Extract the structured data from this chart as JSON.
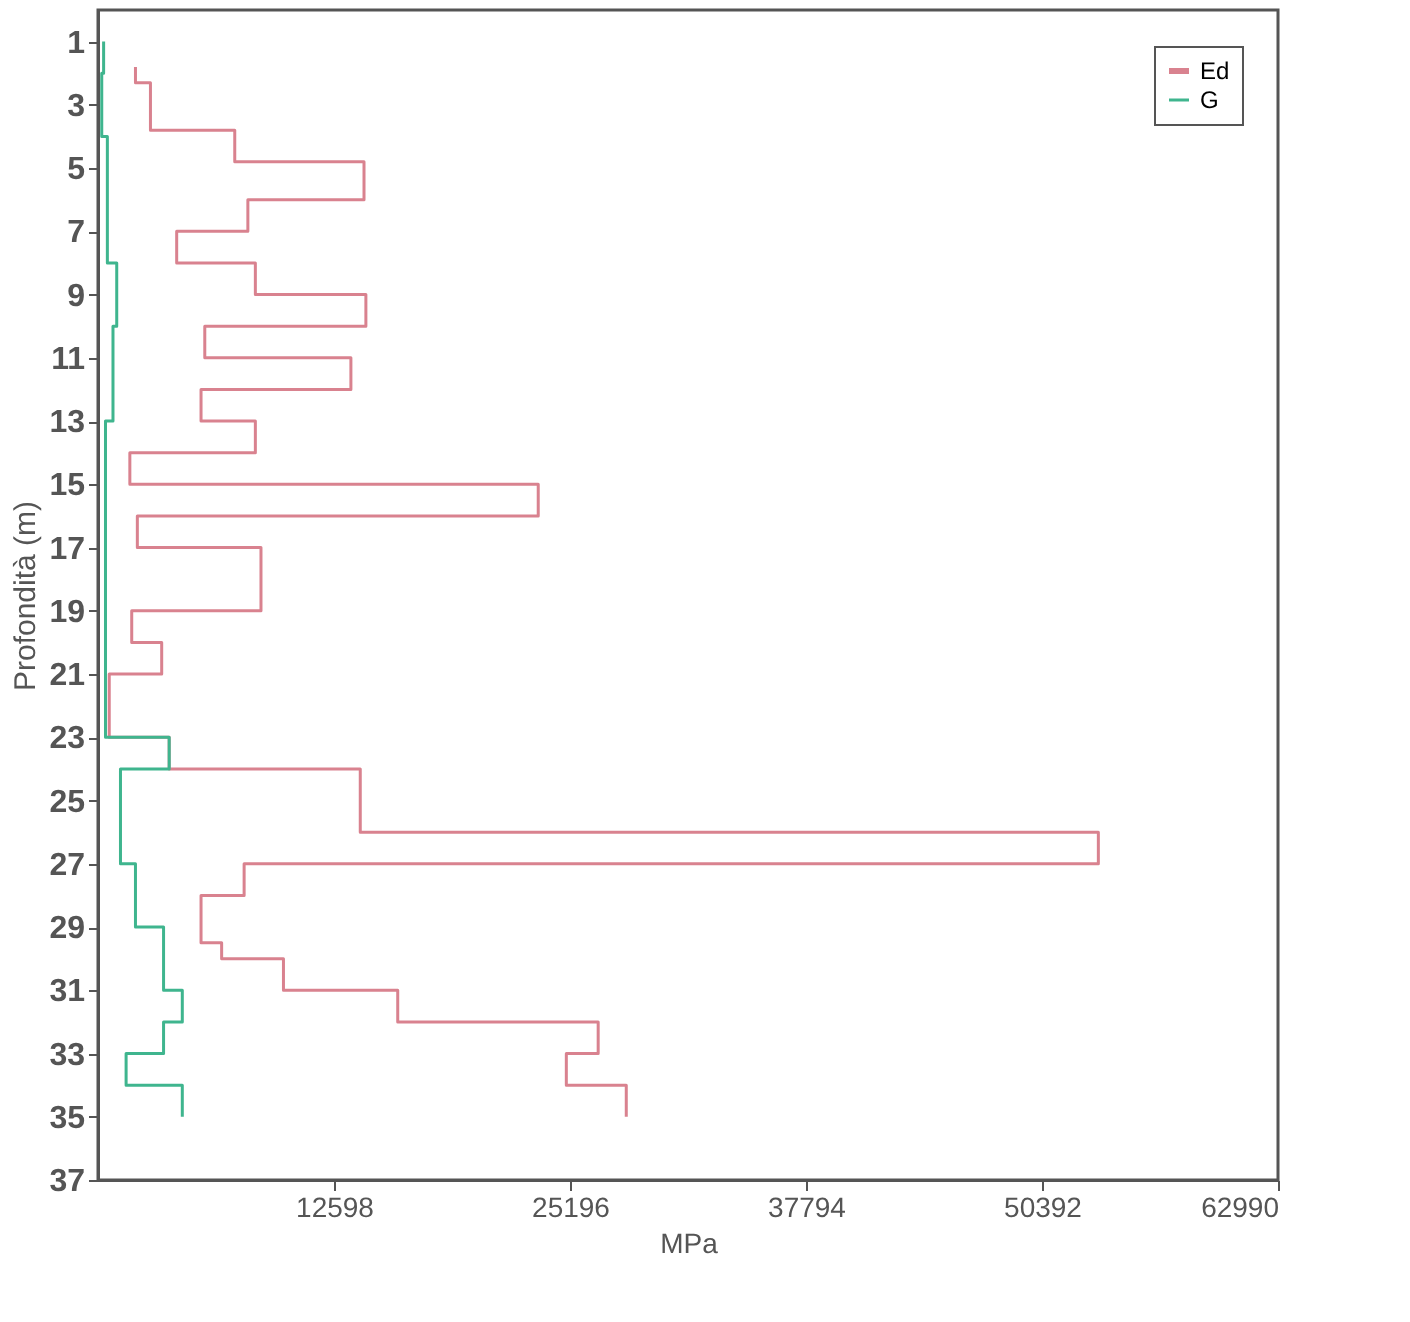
{
  "chart_data": {
    "type": "step",
    "orientation": "horizontal",
    "xlabel": "MPa",
    "ylabel": "Profondità (m)",
    "xlim": [
      0,
      62990
    ],
    "xticks": [
      12598,
      25196,
      37794,
      50392,
      62990
    ],
    "ylim": [
      37,
      0
    ],
    "yticks": [
      1,
      3,
      5,
      7,
      9,
      11,
      13,
      15,
      17,
      19,
      21,
      23,
      25,
      27,
      29,
      31,
      33,
      35,
      37
    ],
    "legend": "top right",
    "grid": false,
    "series": [
      {
        "name": "Ed",
        "color": "#d9828f",
        "x": [
          1.8,
          2.3,
          3.8,
          4.8,
          6,
          7,
          8,
          9,
          10,
          11,
          12,
          13,
          14,
          15,
          16,
          17,
          19,
          20,
          21,
          23,
          24,
          26,
          27,
          28,
          29.5,
          30,
          31,
          32,
          33,
          34,
          35
        ],
        "values": [
          2000,
          2800,
          7300,
          14200,
          8000,
          4200,
          8400,
          14300,
          5700,
          13500,
          5500,
          8400,
          1700,
          23500,
          2100,
          8700,
          1800,
          3400,
          600,
          3800,
          14000,
          53400,
          7800,
          5500,
          6600,
          9900,
          16000,
          26700,
          25000,
          28200,
          28200
        ]
      },
      {
        "name": "G",
        "color": "#3fb58e",
        "x": [
          1,
          2,
          4,
          8,
          10,
          13,
          23,
          24,
          27,
          29,
          31,
          32,
          33,
          34,
          35
        ],
        "values": [
          300,
          200,
          500,
          1000,
          800,
          400,
          3800,
          1200,
          2000,
          3500,
          4500,
          3500,
          1500,
          4500,
          4500
        ]
      }
    ]
  }
}
